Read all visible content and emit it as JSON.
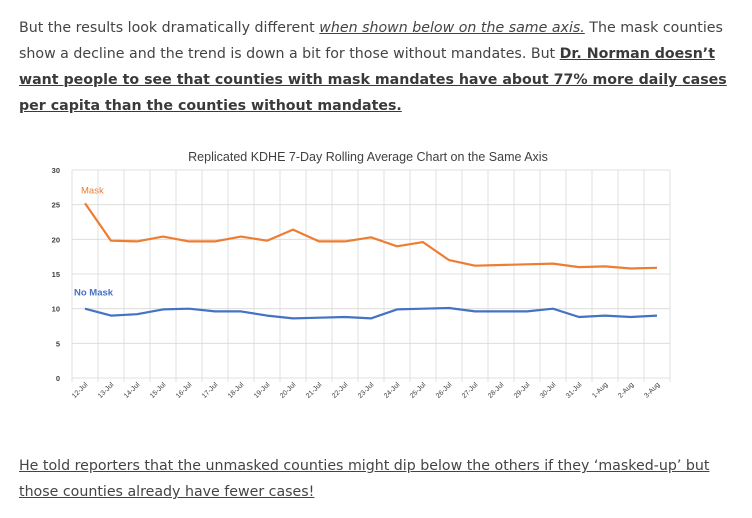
{
  "paragraph1": {
    "intro": "But the results look dramatically different ",
    "link_text": "when shown below on the same axis.",
    "middle": "  The mask counties show a decline and the trend is down a bit for those without mandates.  But ",
    "bold_text": "Dr. Norman doesn’t want people to see that counties with mask mandates have about 77% more daily cases per capita than the counties without mandates."
  },
  "paragraph2": {
    "text": "He told reporters that the unmasked counties might dip below the others if they ‘masked-up’ but those counties already have fewer cases!"
  },
  "colors": {
    "mask": "#ED7D31",
    "no_mask": "#4472C4",
    "grid": "#D9D9D9"
  },
  "chart_data": {
    "type": "line",
    "title": "Replicated KDHE 7-Day Rolling Average Chart on the Same Axis",
    "xlabel": "",
    "ylabel": "",
    "ylim": [
      0,
      30
    ],
    "yticks": [
      "0",
      "5",
      "10",
      "15",
      "20",
      "25",
      "30"
    ],
    "categories": [
      "12-Jul",
      "13-Jul",
      "14-Jul",
      "15-Jul",
      "16-Jul",
      "17-Jul",
      "18-Jul",
      "19-Jul",
      "20-Jul",
      "21-Jul",
      "22-Jul",
      "23-Jul",
      "24-Jul",
      "25-Jul",
      "26-Jul",
      "27-Jul",
      "28-Jul",
      "29-Jul",
      "30-Jul",
      "31-Jul",
      "1-Aug",
      "2-Aug",
      "3-Aug"
    ],
    "series": [
      {
        "name": "Mask",
        "values": [
          25.2,
          19.8,
          19.7,
          20.4,
          19.7,
          19.7,
          20.4,
          19.8,
          21.4,
          19.7,
          19.7,
          20.3,
          19.0,
          19.6,
          17.0,
          16.2,
          16.3,
          16.4,
          16.5,
          16.0,
          16.1,
          15.8,
          15.9
        ]
      },
      {
        "name": "No Mask",
        "values": [
          10.0,
          9.0,
          9.2,
          9.9,
          10.0,
          9.6,
          9.6,
          9.0,
          8.6,
          8.7,
          8.8,
          8.6,
          9.9,
          10.0,
          10.1,
          9.6,
          9.6,
          9.6,
          10.0,
          8.8,
          9.0,
          8.8,
          9.0
        ]
      }
    ],
    "grid": true,
    "legend": "inline labels"
  }
}
